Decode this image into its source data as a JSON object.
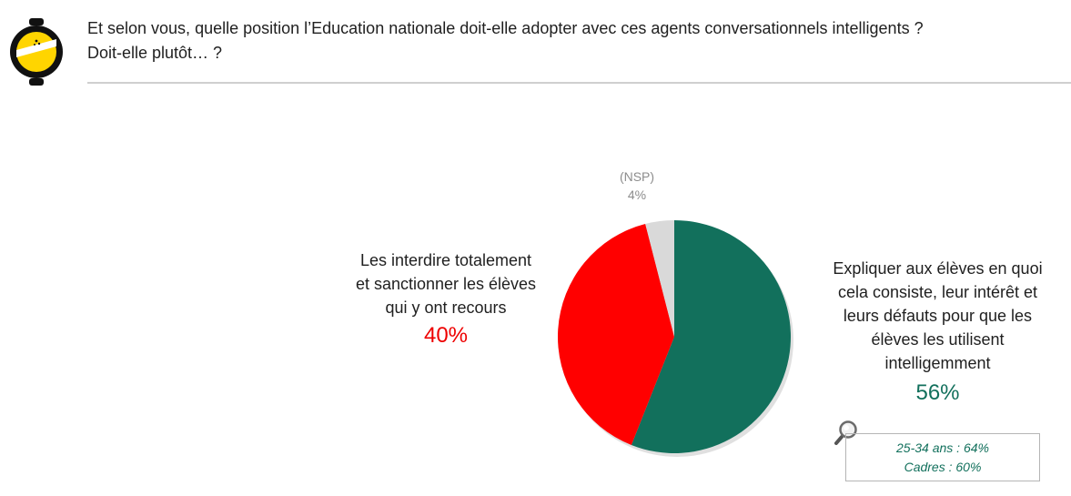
{
  "header": {
    "question_line1": "Et selon vous, quelle position l’Education nationale doit-elle adopter avec ces agents conversationnels intelligents ?",
    "question_line2": "Doit-elle plutôt… ?"
  },
  "colors": {
    "explain": "#12705c",
    "ban": "#ff0000",
    "nsp": "#d9d9d9",
    "logo_yellow": "#ffd500",
    "text_dark": "#1f1f1f"
  },
  "chart_data": {
    "type": "pie",
    "start_angle_deg": 0,
    "direction": "clockwise",
    "slices": [
      {
        "label": "Expliquer aux élèves en quoi cela consiste, leur intérêt et leurs défauts pour que les élèves les utilisent intelligemment",
        "value": 56,
        "value_label": "56%",
        "color": "#12705c"
      },
      {
        "label": "Les interdire totalement et sanctionner les élèves qui y ont recours",
        "value": 40,
        "value_label": "40%",
        "color": "#ff0000"
      },
      {
        "label": "(NSP)",
        "value": 4,
        "value_label": "4%",
        "color": "#d9d9d9"
      }
    ],
    "labels": {
      "explain_lines": [
        "Expliquer aux élèves en quoi",
        "cela consiste, leur intérêt et",
        "leurs défauts pour que les",
        "élèves les utilisent",
        "intelligemment"
      ],
      "ban_lines": [
        "Les interdire totalement",
        "et sanctionner les élèves",
        "qui y ont recours"
      ]
    }
  },
  "detail_box": {
    "icon": "magnifier-icon",
    "lines": [
      "25-34 ans : 64%",
      "Cadres : 60%"
    ]
  }
}
